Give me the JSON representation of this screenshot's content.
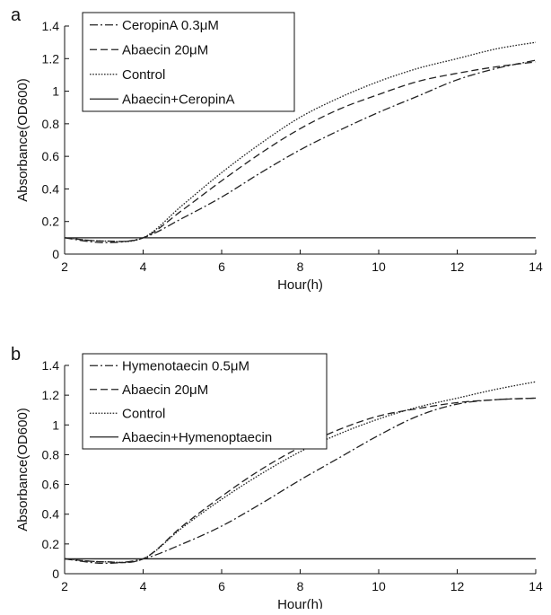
{
  "chart_data": [
    {
      "panel_label": "a",
      "type": "line",
      "xlabel": "Hour(h)",
      "ylabel": "Absorbance(OD600)",
      "xlim": [
        2,
        14
      ],
      "ylim": [
        0,
        1.4
      ],
      "x_ticks": [
        "2",
        "4",
        "6",
        "8",
        "10",
        "12",
        "14"
      ],
      "y_ticks": [
        "0",
        "0.2",
        "0.4",
        "0.6",
        "0.8",
        "1",
        "1.2",
        "1.4"
      ],
      "grid": false,
      "legend_position": "top-left",
      "x": [
        2,
        3,
        4,
        5,
        6,
        7,
        8,
        9,
        10,
        11,
        12,
        13,
        14
      ],
      "series": [
        {
          "name": "CeropinA 0.3μM",
          "dash": "dashdot",
          "color": "#222222",
          "values": [
            0.1,
            0.07,
            0.1,
            0.22,
            0.35,
            0.5,
            0.64,
            0.76,
            0.87,
            0.97,
            1.07,
            1.14,
            1.19
          ]
        },
        {
          "name": "Abaecin 20μM",
          "dash": "dashed",
          "color": "#222222",
          "values": [
            0.1,
            0.08,
            0.1,
            0.27,
            0.45,
            0.62,
            0.77,
            0.89,
            0.98,
            1.06,
            1.11,
            1.15,
            1.18
          ]
        },
        {
          "name": "Control",
          "dash": "dotted",
          "color": "#222222",
          "values": [
            0.1,
            0.08,
            0.1,
            0.3,
            0.5,
            0.68,
            0.84,
            0.96,
            1.06,
            1.14,
            1.2,
            1.26,
            1.3
          ]
        },
        {
          "name": "Abaecin+CeropinA",
          "dash": "solid",
          "color": "#222222",
          "values": [
            0.1,
            0.1,
            0.1,
            0.1,
            0.1,
            0.1,
            0.1,
            0.1,
            0.1,
            0.1,
            0.1,
            0.1,
            0.1
          ]
        }
      ]
    },
    {
      "panel_label": "b",
      "type": "line",
      "xlabel": "Hour(h)",
      "ylabel": "Absorbance(OD600)",
      "xlim": [
        2,
        14
      ],
      "ylim": [
        0,
        1.4
      ],
      "x_ticks": [
        "2",
        "4",
        "6",
        "8",
        "10",
        "12",
        "14"
      ],
      "y_ticks": [
        "0",
        "0.2",
        "0.4",
        "0.6",
        "0.8",
        "1",
        "1.2",
        "1.4"
      ],
      "grid": false,
      "legend_position": "top-left",
      "x": [
        2,
        3,
        4,
        5,
        6,
        7,
        8,
        9,
        10,
        11,
        12,
        13,
        14
      ],
      "series": [
        {
          "name": "Hymenotaecin 0.5μM",
          "dash": "dashdot",
          "color": "#222222",
          "values": [
            0.1,
            0.07,
            0.1,
            0.2,
            0.32,
            0.47,
            0.63,
            0.78,
            0.93,
            1.06,
            1.14,
            1.17,
            1.18
          ]
        },
        {
          "name": "Abaecin 20μM",
          "dash": "dashed",
          "color": "#222222",
          "values": [
            0.1,
            0.08,
            0.1,
            0.32,
            0.52,
            0.7,
            0.85,
            0.97,
            1.06,
            1.11,
            1.15,
            1.17,
            1.18
          ]
        },
        {
          "name": "Control",
          "dash": "dotted",
          "color": "#222222",
          "values": [
            0.1,
            0.08,
            0.1,
            0.31,
            0.5,
            0.67,
            0.82,
            0.94,
            1.04,
            1.12,
            1.18,
            1.24,
            1.29
          ]
        },
        {
          "name": "Abaecin+Hymenoptaecin",
          "dash": "solid",
          "color": "#222222",
          "values": [
            0.1,
            0.1,
            0.1,
            0.1,
            0.1,
            0.1,
            0.1,
            0.1,
            0.1,
            0.1,
            0.1,
            0.1,
            0.1
          ]
        }
      ]
    }
  ]
}
